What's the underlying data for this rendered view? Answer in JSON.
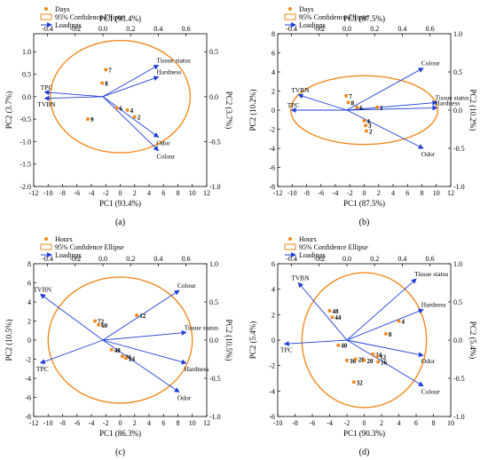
{
  "chart_data": [
    {
      "type": "scatter",
      "caption": "(a)",
      "xlabel": "PC1 (93.4%)",
      "ylabel": "PC2 (3.7%)",
      "top_xlabel": "PC1 (93.4%)",
      "right_ylabel": "PC2 (3.7%)",
      "xlim": [
        -12,
        12
      ],
      "ylim": [
        -2,
        1.4
      ],
      "xticks": [
        -12,
        -10,
        -8,
        -6,
        -4,
        -2,
        0,
        2,
        4,
        6,
        8,
        10,
        12
      ],
      "yticks": [
        -2.0,
        -1.5,
        -1.0,
        -0.5,
        0.0,
        0.5,
        1.0
      ],
      "loading_xlim": [
        -0.5,
        0.75
      ],
      "loading_ylim": [
        -1.0,
        0.7
      ],
      "loading_xticks": [
        -0.4,
        -0.2,
        0.0,
        0.2,
        0.4,
        0.6
      ],
      "loading_yticks": [
        -1.0,
        -0.5,
        0.0,
        0.5
      ],
      "legend": [
        "Days",
        "95% Confidence Ellipse",
        "Loadings"
      ],
      "points": [
        {
          "label": "7",
          "x": -2.0,
          "y": 0.6
        },
        {
          "label": "8",
          "x": -2.5,
          "y": 0.3
        },
        {
          "label": "6",
          "x": -0.5,
          "y": -0.25
        },
        {
          "label": "4",
          "x": 1.0,
          "y": -0.3
        },
        {
          "label": "2",
          "x": 2.0,
          "y": -0.45
        },
        {
          "label": "9",
          "x": -4.5,
          "y": -0.5
        }
      ],
      "ellipse": {
        "cx": 0,
        "cy": 0,
        "rx": 9.7,
        "ry": 1.25
      },
      "loadings": [
        {
          "label": "Tissue status",
          "x": 0.4,
          "y": 0.35
        },
        {
          "label": "Hardness",
          "x": 0.4,
          "y": 0.22
        },
        {
          "label": "Odor",
          "x": 0.4,
          "y": -0.45
        },
        {
          "label": "Colour",
          "x": 0.4,
          "y": -0.6
        },
        {
          "label": "TPC",
          "x": -0.42,
          "y": 0.05
        },
        {
          "label": "TVBN",
          "x": -0.42,
          "y": -0.02
        }
      ]
    },
    {
      "type": "scatter",
      "caption": "(b)",
      "xlabel": "PC1 (87.5%)",
      "ylabel": "PC2 (10.2%)",
      "top_xlabel": "PC1 (87.5%)",
      "right_ylabel": "PC2 (10.2%)",
      "xlim": [
        -12,
        12
      ],
      "ylim": [
        -8,
        8
      ],
      "xticks": [
        -12,
        -10,
        -8,
        -6,
        -4,
        -2,
        0,
        2,
        4,
        6,
        8,
        10,
        12
      ],
      "yticks": [
        -8,
        -6,
        -4,
        -2,
        0,
        2,
        4,
        6,
        8
      ],
      "loading_xlim": [
        -0.5,
        0.75
      ],
      "loading_ylim": [
        -1.0,
        1.0
      ],
      "loading_xticks": [
        -0.4,
        -0.2,
        0.0,
        0.2,
        0.4,
        0.6
      ],
      "loading_yticks": [
        -1.0,
        -0.5,
        0.0,
        0.5,
        1.0
      ],
      "legend": [
        "Days",
        "95% Confidence Ellipse",
        "Loadings"
      ],
      "points": [
        {
          "label": "7",
          "x": -2.5,
          "y": 1.5
        },
        {
          "label": "8",
          "x": -2.2,
          "y": 0.8
        },
        {
          "label": "6",
          "x": -1.0,
          "y": 0.3
        },
        {
          "label": "4",
          "x": 0.0,
          "y": -1.1
        },
        {
          "label": "3",
          "x": 0.2,
          "y": -1.6
        },
        {
          "label": "2",
          "x": 0.3,
          "y": -2.2
        },
        {
          "label": "1",
          "x": 1.8,
          "y": 0.3
        }
      ],
      "ellipse": {
        "cx": 0,
        "cy": 0,
        "rx": 10.2,
        "ry": 3.6
      },
      "loadings": [
        {
          "label": "Colour",
          "x": 0.55,
          "y": 0.55
        },
        {
          "label": "Tissue status",
          "x": 0.65,
          "y": 0.1
        },
        {
          "label": "Hardness",
          "x": 0.65,
          "y": 0.03
        },
        {
          "label": "Odor",
          "x": 0.55,
          "y": -0.5
        },
        {
          "label": "TVBN",
          "x": -0.35,
          "y": 0.2
        },
        {
          "label": "TPC",
          "x": -0.4,
          "y": 0.0
        }
      ]
    },
    {
      "type": "scatter",
      "caption": "(c)",
      "xlabel": "PC1 (86.3%)",
      "ylabel": "PC2 (10.5%)",
      "top_xlabel": "",
      "right_ylabel": "PC2 (10.5%)",
      "xlim": [
        -12,
        12
      ],
      "ylim": [
        -8,
        8
      ],
      "xticks": [
        -12,
        -10,
        -8,
        -6,
        -4,
        -2,
        0,
        2,
        4,
        6,
        8,
        10,
        12
      ],
      "yticks": [
        -8,
        -6,
        -4,
        -2,
        0,
        2,
        4,
        6,
        8
      ],
      "loading_xlim": [
        -0.5,
        0.75
      ],
      "loading_ylim": [
        -1.0,
        1.0
      ],
      "loading_xticks": [
        -0.4,
        -0.2,
        0.0,
        0.2,
        0.4,
        0.6
      ],
      "loading_yticks": [
        -1.0,
        -0.5,
        0.0,
        0.5,
        1.0
      ],
      "legend": [
        "Hours",
        "95% Confidence Ellipse",
        "Loadings"
      ],
      "points": [
        {
          "label": "72",
          "x": -3.5,
          "y": 2.0
        },
        {
          "label": "60",
          "x": -3.0,
          "y": 1.6
        },
        {
          "label": "12",
          "x": 2.3,
          "y": 2.6
        },
        {
          "label": "48",
          "x": -1.2,
          "y": -1.0
        },
        {
          "label": "36",
          "x": 0.3,
          "y": -1.7
        },
        {
          "label": "24",
          "x": 0.8,
          "y": -1.9
        }
      ],
      "ellipse": {
        "cx": 0,
        "cy": 0,
        "rx": 10.0,
        "ry": 6.6
      },
      "loadings": [
        {
          "label": "Colour",
          "x": 0.55,
          "y": 0.65
        },
        {
          "label": "Tissue status",
          "x": 0.6,
          "y": 0.1
        },
        {
          "label": "Hardness",
          "x": 0.6,
          "y": -0.3
        },
        {
          "label": "Odor",
          "x": 0.55,
          "y": -0.68
        },
        {
          "label": "TVBN",
          "x": -0.45,
          "y": 0.6
        },
        {
          "label": "TPC",
          "x": -0.45,
          "y": -0.3
        }
      ]
    },
    {
      "type": "scatter",
      "caption": "(d)",
      "xlabel": "PC1 (90.3%)",
      "ylabel": "PC2 (5.4%)",
      "top_xlabel": "",
      "right_ylabel": "PC2 (5.4%)",
      "xlim": [
        -10,
        10
      ],
      "ylim": [
        -6,
        6
      ],
      "xticks": [
        -10,
        -8,
        -6,
        -4,
        -2,
        0,
        2,
        4,
        6,
        8,
        10
      ],
      "yticks": [
        -6,
        -4,
        -2,
        0,
        2,
        4,
        6
      ],
      "loading_xlim": [
        -0.5,
        0.75
      ],
      "loading_ylim": [
        -1.0,
        1.0
      ],
      "loading_xticks": [
        -0.4,
        -0.2,
        0.0,
        0.2,
        0.4,
        0.6
      ],
      "loading_yticks": [
        -1.0,
        -0.5,
        0.0,
        0.5,
        1.0
      ],
      "legend": [
        "Hours",
        "95% Confidence Ellipse",
        "Loadings"
      ],
      "points": [
        {
          "label": "48",
          "x": -4.0,
          "y": 2.3
        },
        {
          "label": "44",
          "x": -3.7,
          "y": 1.8
        },
        {
          "label": "4",
          "x": 4.0,
          "y": 1.5
        },
        {
          "label": "8",
          "x": 2.5,
          "y": 0.5
        },
        {
          "label": "40",
          "x": -3.0,
          "y": -0.4
        },
        {
          "label": "36",
          "x": -2.0,
          "y": -1.6
        },
        {
          "label": "28",
          "x": -1.0,
          "y": -1.5
        },
        {
          "label": "20",
          "x": 0.0,
          "y": -1.6
        },
        {
          "label": "24",
          "x": 1.0,
          "y": -1.1
        },
        {
          "label": "12",
          "x": 1.5,
          "y": -1.3
        },
        {
          "label": "16",
          "x": 1.6,
          "y": -1.7
        },
        {
          "label": "32",
          "x": -1.2,
          "y": -3.3
        }
      ],
      "ellipse": {
        "cx": 0,
        "cy": 0,
        "rx": 7.2,
        "ry": 5.3
      },
      "loadings": [
        {
          "label": "Tissue status",
          "x": 0.5,
          "y": 0.8
        },
        {
          "label": "Hardness",
          "x": 0.55,
          "y": 0.4
        },
        {
          "label": "Odor",
          "x": 0.55,
          "y": -0.2
        },
        {
          "label": "Colour",
          "x": 0.55,
          "y": -0.6
        },
        {
          "label": "TVBN",
          "x": -0.35,
          "y": 0.75
        },
        {
          "label": "TPC",
          "x": -0.45,
          "y": -0.05
        }
      ]
    }
  ]
}
